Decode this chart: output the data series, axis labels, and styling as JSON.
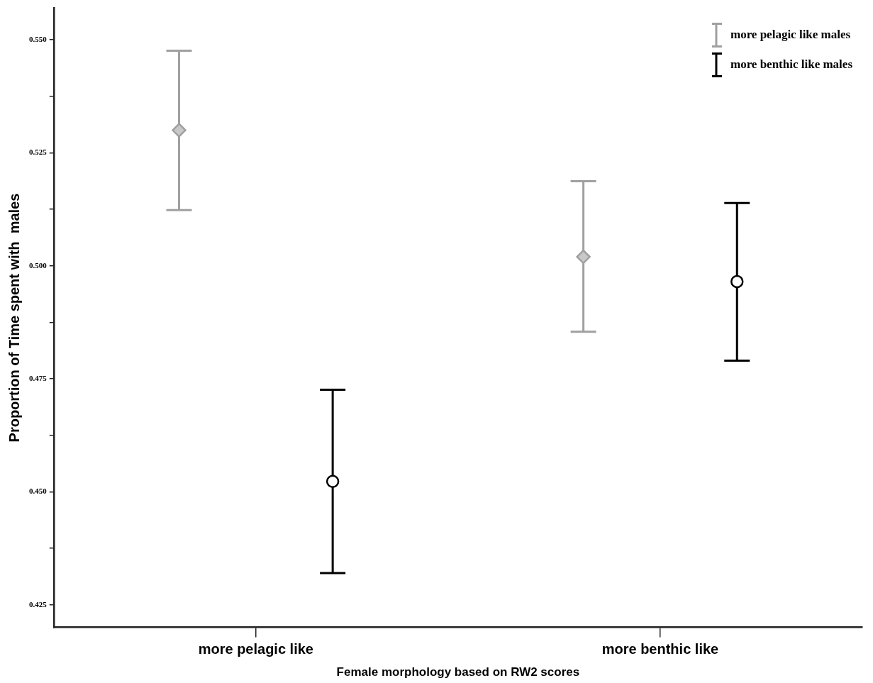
{
  "chart_data": {
    "type": "scatter",
    "xlabel": "Female morphology based on RW2 scores",
    "ylabel": "Proportion of Time spent with  males",
    "categories": [
      "more pelagic like",
      "more benthic like"
    ],
    "series": [
      {
        "name": "more pelagic like males",
        "color": "#a0a0a0",
        "marker": "diamond",
        "values": [
          0.53,
          0.502
        ],
        "errors": [
          [
            0.5123,
            0.5476
          ],
          [
            0.4854,
            0.5187
          ]
        ]
      },
      {
        "name": "more benthic like males",
        "color": "#000000",
        "marker": "circle",
        "values": [
          0.4523,
          0.4965
        ],
        "errors": [
          [
            0.432,
            0.4726
          ],
          [
            0.479,
            0.5139
          ]
        ]
      }
    ],
    "ylim": [
      0.42,
      0.557
    ],
    "yticks": [
      {
        "value": 0.425,
        "label": "0.425"
      },
      {
        "value": 0.4375,
        "label": null
      },
      {
        "value": 0.45,
        "label": "0.450"
      },
      {
        "value": 0.4625,
        "label": null
      },
      {
        "value": 0.475,
        "label": "0.475"
      },
      {
        "value": 0.4875,
        "label": null
      },
      {
        "value": 0.5,
        "label": "0.500"
      },
      {
        "value": 0.5125,
        "label": null
      },
      {
        "value": 0.525,
        "label": "0.525"
      },
      {
        "value": 0.5375,
        "label": null
      },
      {
        "value": 0.55,
        "label": "0.550"
      }
    ],
    "grid": false,
    "legend": "top right"
  }
}
